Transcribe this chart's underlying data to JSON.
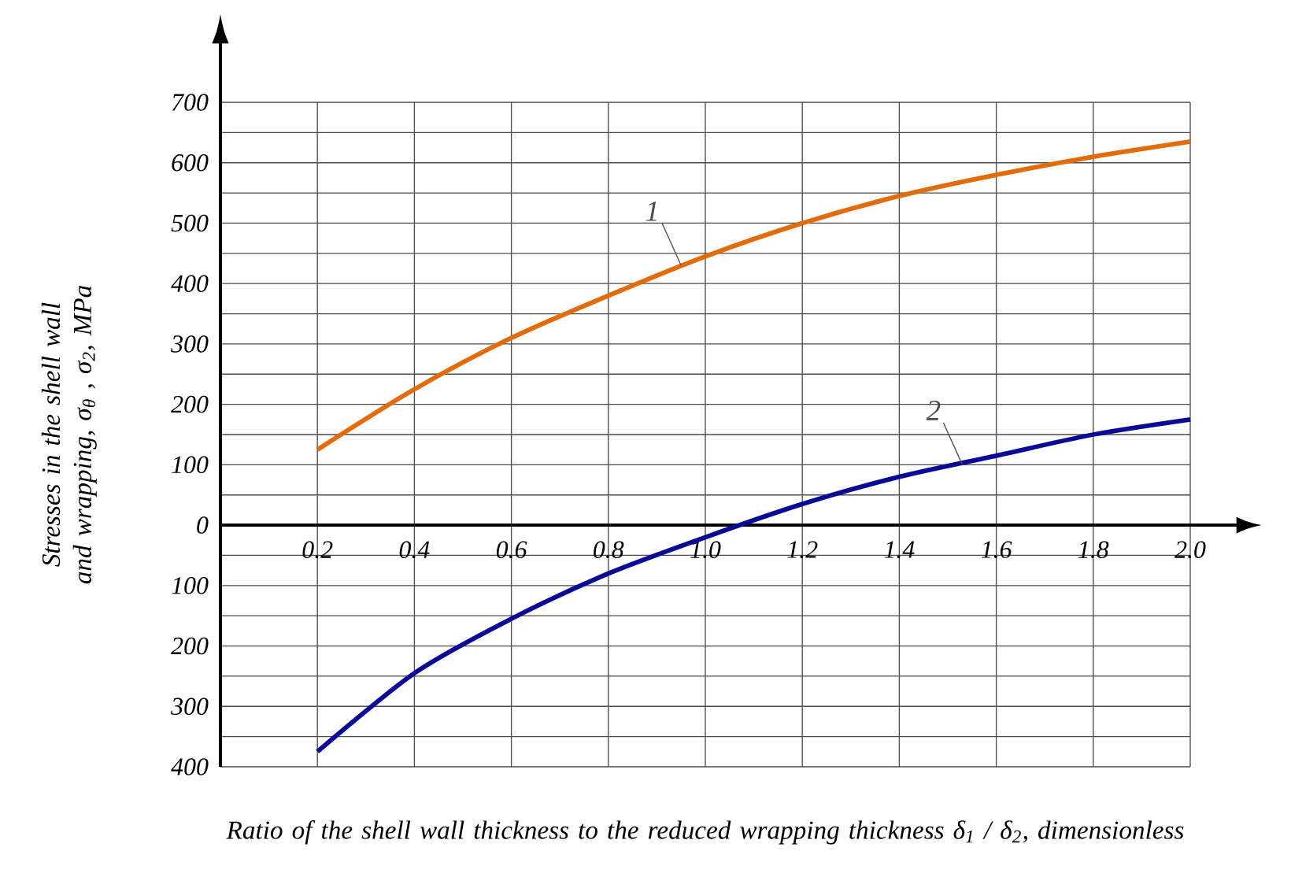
{
  "chart_data": {
    "type": "line",
    "xlabel": "Ratio of the shell wall thickness to the reduced wrapping thickness δ$_{1}$ / δ$_{2}$, dimensionless",
    "ylabel": "Stresses in the shell wall and wrapping, σ$_{θ}$ , σ$_{2}$, MPa",
    "x": [
      0.2,
      0.4,
      0.6,
      0.8,
      1.0,
      1.2,
      1.4,
      1.6,
      1.8,
      2.0
    ],
    "series": [
      {
        "color": "#e36c0a",
        "values": [
          125,
          225,
          310,
          380,
          445,
          500,
          545,
          580,
          610,
          635
        ]
      },
      {
        "color": "#0a0a96",
        "values": [
          -375,
          -245,
          -155,
          -80,
          -20,
          35,
          80,
          115,
          150,
          175
        ]
      }
    ],
    "xlim": [
      0,
      2.0
    ],
    "ylim": [
      -400,
      700
    ],
    "xticks": [
      0.2,
      0.4,
      0.6,
      0.8,
      {
        "value": 1.0,
        "label": "1.0"
      },
      1.2,
      1.4,
      1.6,
      1.8,
      {
        "value": 2.0,
        "label": "2.0"
      }
    ],
    "yticks": [
      {
        "value": -400,
        "label": "400"
      },
      {
        "value": -300,
        "label": "300"
      },
      {
        "value": -200,
        "label": "200"
      },
      {
        "value": -100,
        "label": "100"
      },
      0,
      100,
      200,
      300,
      400,
      500,
      600,
      700
    ],
    "grid": true,
    "annotations": [
      {
        "text": "1",
        "x": 0.95,
        "y": 430
      },
      {
        "text": "2",
        "x": 1.53,
        "y": 100
      }
    ]
  }
}
